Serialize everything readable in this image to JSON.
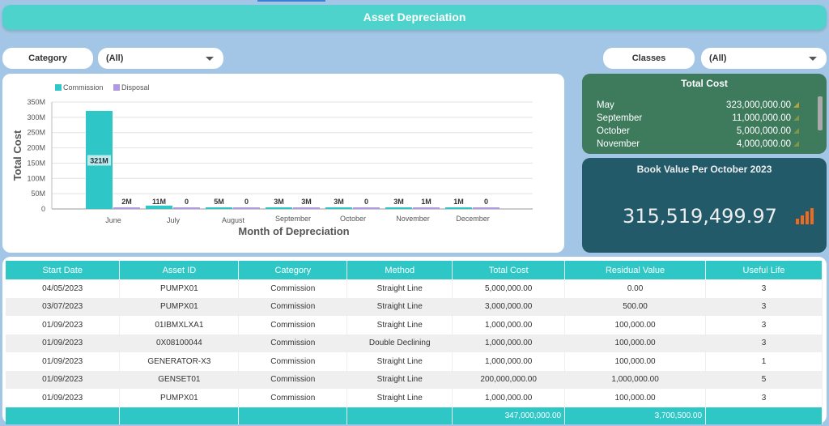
{
  "header": {
    "title": "Asset Depreciation"
  },
  "filters": {
    "category_label": "Category",
    "category_value": "(All)",
    "classes_label": "Classes",
    "classes_value": "(All)"
  },
  "chart_data": {
    "type": "bar",
    "xlabel": "Month of Depreciation",
    "ylabel": "Total Cost",
    "ylim": [
      0,
      350
    ],
    "yticks": [
      "0",
      "50M",
      "100M",
      "150M",
      "200M",
      "250M",
      "300M",
      "350M"
    ],
    "categories": [
      "June",
      "July",
      "August",
      "September",
      "October",
      "November",
      "December"
    ],
    "legend": "top-left",
    "grid": true,
    "series": [
      {
        "name": "Commission",
        "color": "#2ec6c6",
        "values": [
          321,
          11,
          5,
          3,
          3,
          3,
          1
        ],
        "labels": [
          "321M",
          "11M",
          "5M",
          "3M",
          "3M",
          "3M",
          "1M"
        ]
      },
      {
        "name": "Disposal",
        "color": "#b09ae0",
        "values": [
          2,
          0,
          0,
          3,
          0,
          1,
          0
        ],
        "labels": [
          "2M",
          "0",
          "0",
          "3M",
          "0",
          "1M",
          "0"
        ]
      }
    ]
  },
  "total_cost": {
    "title": "Total Cost",
    "rows": [
      {
        "month": "May",
        "value": "323,000,000.00"
      },
      {
        "month": "September",
        "value": "11,000,000.00"
      },
      {
        "month": "October",
        "value": "5,000,000.00"
      },
      {
        "month": "November",
        "value": "4,000,000.00"
      }
    ]
  },
  "book_value": {
    "title": "Book Value Per October 2023",
    "value": "315,519,499.97"
  },
  "table": {
    "columns": [
      "Start Date",
      "Asset ID",
      "Category",
      "Method",
      "Total Cost",
      "Residual Value",
      "Useful Life"
    ],
    "rows": [
      [
        "04/05/2023",
        "PUMPX01",
        "Commission",
        "Straight Line",
        "5,000,000.00",
        "0.00",
        "3"
      ],
      [
        "03/07/2023",
        "PUMPX01",
        "Commission",
        "Straight Line",
        "3,000,000.00",
        "500.00",
        "3"
      ],
      [
        "01/09/2023",
        "01IBMXLXA1",
        "Commission",
        "Straight Line",
        "1,000,000.00",
        "100,000.00",
        "3"
      ],
      [
        "01/09/2023",
        "0X08100044",
        "Commission",
        "Double Declining",
        "1,000,000.00",
        "100,000.00",
        "3"
      ],
      [
        "01/09/2023",
        "GENERATOR-X3",
        "Commission",
        "Straight Line",
        "1,000,000.00",
        "100,000.00",
        "1"
      ],
      [
        "01/09/2023",
        "GENSET01",
        "Commission",
        "Straight Line",
        "200,000,000.00",
        "1,000,000.00",
        "5"
      ],
      [
        "01/09/2023",
        "PUMPX01",
        "Commission",
        "Straight Line",
        "1,000,000.00",
        "100,000.00",
        "3"
      ]
    ],
    "totals": {
      "total_cost": "347,000,000.00",
      "residual_value": "3,700,500.00"
    }
  }
}
